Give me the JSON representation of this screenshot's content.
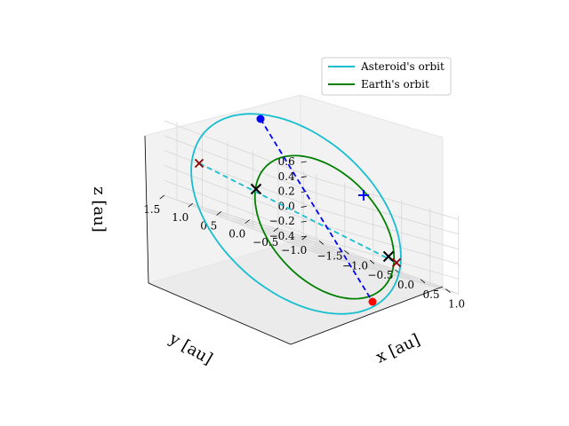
{
  "chart_data": {
    "type": "line3d",
    "xlabel": "x [au]",
    "ylabel": "y [au]",
    "zlabel": "z [au]",
    "xlim": [
      -1.75,
      1.25
    ],
    "ylim": [
      -1.0,
      1.5
    ],
    "zlim": [
      -0.4,
      0.65
    ],
    "x_ticks": [
      "-1.5",
      "-1.0",
      "-0.5",
      "0.0",
      "0.5",
      "1.0"
    ],
    "y_ticks": [
      "1.5",
      "1.0",
      "0.5",
      "0.0",
      "-0.5",
      "-1.0"
    ],
    "z_ticks": [
      "0.6",
      "0.4",
      "0.2",
      "0.0",
      "-0.2",
      "-0.4"
    ],
    "grid": true,
    "legend_position": "top-right",
    "series": [
      {
        "name": "Asteroid's orbit",
        "color": "#17becf",
        "style": "solid",
        "semi_major_au": 1.32,
        "eccentricity": 0.2,
        "inclination_deg": 15
      },
      {
        "name": "Earth's orbit",
        "color": "#008000",
        "style": "solid",
        "semi_major_au": 1.0,
        "eccentricity": 0.0,
        "inclination_deg": 0
      }
    ],
    "lines": [
      {
        "kind": "asteroid-apsides",
        "color": "#17becf",
        "style": "dashed"
      },
      {
        "kind": "node-line",
        "color": "#0000ff",
        "style": "dashed"
      }
    ],
    "markers": [
      {
        "kind": "asteroid-perihelion",
        "marker": "x",
        "color": "#000000"
      },
      {
        "kind": "asteroid-aphelion",
        "marker": "x",
        "color": "#000000"
      },
      {
        "kind": "earth-point-a",
        "marker": "x",
        "color": "#8b0000"
      },
      {
        "kind": "earth-point-b",
        "marker": "x",
        "color": "#8b0000"
      },
      {
        "kind": "ascending-node",
        "marker": "o",
        "color": "#0000ff"
      },
      {
        "kind": "descending-node",
        "marker": "o",
        "color": "#ff0000"
      },
      {
        "kind": "focus",
        "marker": "+",
        "color": "#0000ff"
      }
    ]
  }
}
